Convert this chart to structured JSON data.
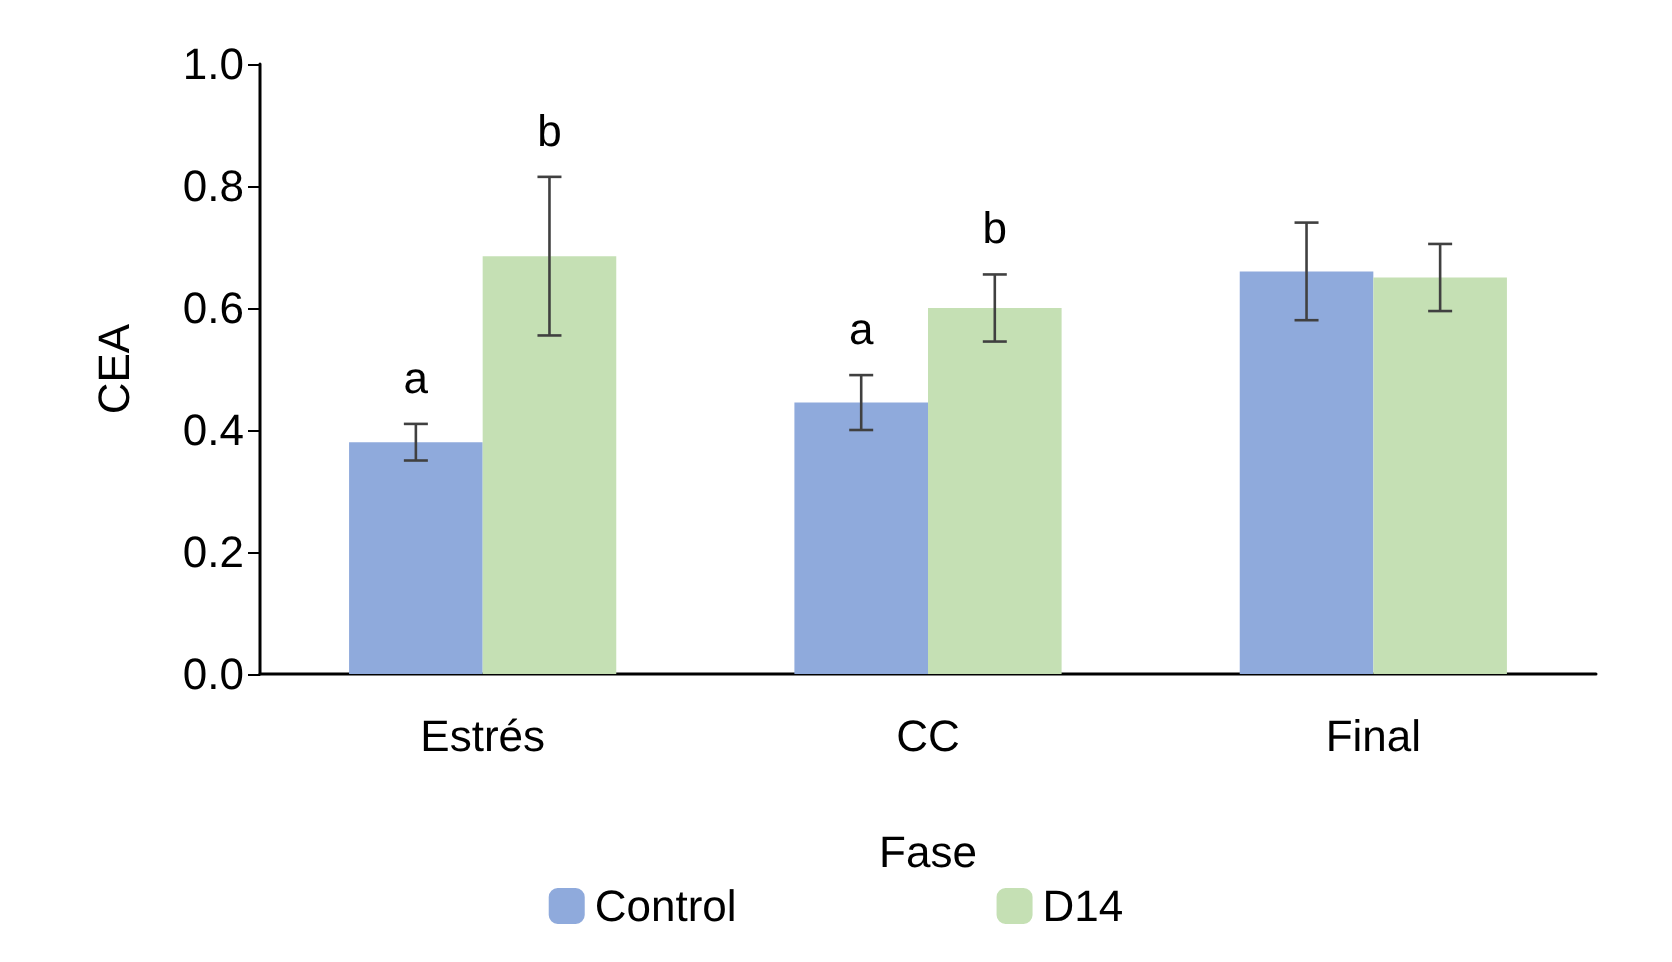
{
  "chart_data": {
    "type": "bar",
    "xlabel": "Fase",
    "ylabel": "CEA",
    "categories": [
      "Estrés",
      "CC",
      "Final"
    ],
    "series": [
      {
        "name": "Control",
        "color": "#8faadc",
        "values": [
          0.38,
          0.445,
          0.66
        ],
        "errors": [
          0.03,
          0.045,
          0.08
        ],
        "value_labels": [
          "a",
          "a",
          null
        ]
      },
      {
        "name": "D14",
        "color": "#c5e0b4",
        "values": [
          0.685,
          0.6,
          0.65
        ],
        "errors": [
          0.13,
          0.055,
          0.055
        ],
        "value_labels": [
          "b",
          "b",
          null
        ]
      }
    ],
    "ylim": [
      0,
      1
    ],
    "yticks": [
      {
        "value": 0,
        "label": "0.0"
      },
      {
        "value": 0.2,
        "label": "0.2"
      },
      {
        "value": 0.4,
        "label": "0.4"
      },
      {
        "value": 0.6,
        "label": "0.6"
      },
      {
        "value": 0.8,
        "label": "0.8"
      },
      {
        "value": 1,
        "label": "1.0"
      }
    ],
    "grid": false,
    "legend": "bottom"
  }
}
